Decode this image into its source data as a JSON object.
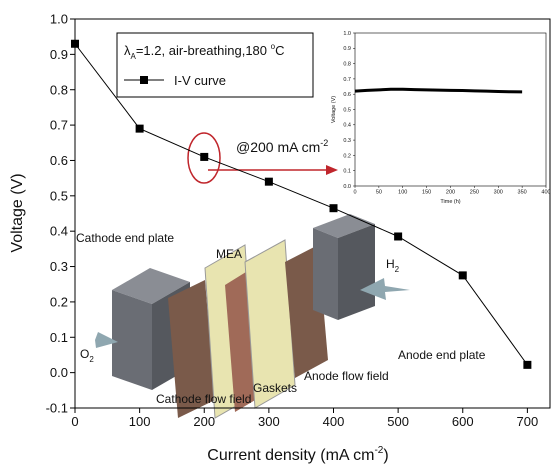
{
  "chart_data": [
    {
      "type": "line",
      "xlabel": [
        "Current density (mA cm",
        "-2",
        ")"
      ],
      "ylabel": "Voltage (V)",
      "legend_title": [
        "λ",
        "A",
        "=1.2, air-breathing,180 ",
        "o",
        "C"
      ],
      "annotation": [
        "@200 mA cm",
        "-2"
      ],
      "x": [
        0,
        100,
        200,
        300,
        400,
        500,
        600,
        700
      ],
      "series": [
        {
          "name": "I-V curve",
          "color": "#000000",
          "values": [
            0.93,
            0.69,
            0.61,
            0.54,
            0.465,
            0.385,
            0.275,
            0.022
          ]
        }
      ],
      "xlim": [
        0,
        735
      ],
      "ylim": [
        -0.1,
        1.0
      ],
      "xticks": [
        0,
        100,
        200,
        300,
        400,
        500,
        600,
        700
      ],
      "yticks": [
        {
          "value": 1.0,
          "label": "1.0"
        },
        0.9,
        0.8,
        0.7,
        0.6,
        0.5,
        0.4,
        0.3,
        0.2,
        0.1,
        {
          "value": 0.0,
          "label": "0.0"
        },
        -0.1
      ]
    },
    {
      "type": "line",
      "xlabel": "Time (h)",
      "ylabel": "Voltage (V)",
      "x": [
        0,
        25,
        50,
        75,
        100,
        125,
        150,
        175,
        200,
        225,
        250,
        275,
        300,
        325,
        350
      ],
      "series": [
        {
          "color": "#000000",
          "values": [
            0.62,
            0.625,
            0.628,
            0.632,
            0.632,
            0.63,
            0.628,
            0.627,
            0.625,
            0.624,
            0.622,
            0.62,
            0.618,
            0.616,
            0.615
          ]
        }
      ],
      "xlim": [
        0,
        400
      ],
      "ylim": [
        0,
        1.0
      ],
      "xticks": [
        0,
        50,
        100,
        150,
        200,
        250,
        300,
        350,
        400
      ],
      "yticks": [
        {
          "value": 0.0,
          "label": "0.0"
        },
        0.1,
        0.2,
        0.3,
        0.4,
        0.5,
        0.6,
        0.7,
        0.8,
        0.9,
        {
          "value": 1.0,
          "label": "1.0"
        }
      ]
    }
  ],
  "diagram": {
    "labels": [
      "Cathode end plate",
      "MEA",
      "H",
      "2",
      "O",
      "2",
      "Gaskets",
      "Cathode flow field",
      "Anode flow field",
      "Anode end plate"
    ]
  }
}
